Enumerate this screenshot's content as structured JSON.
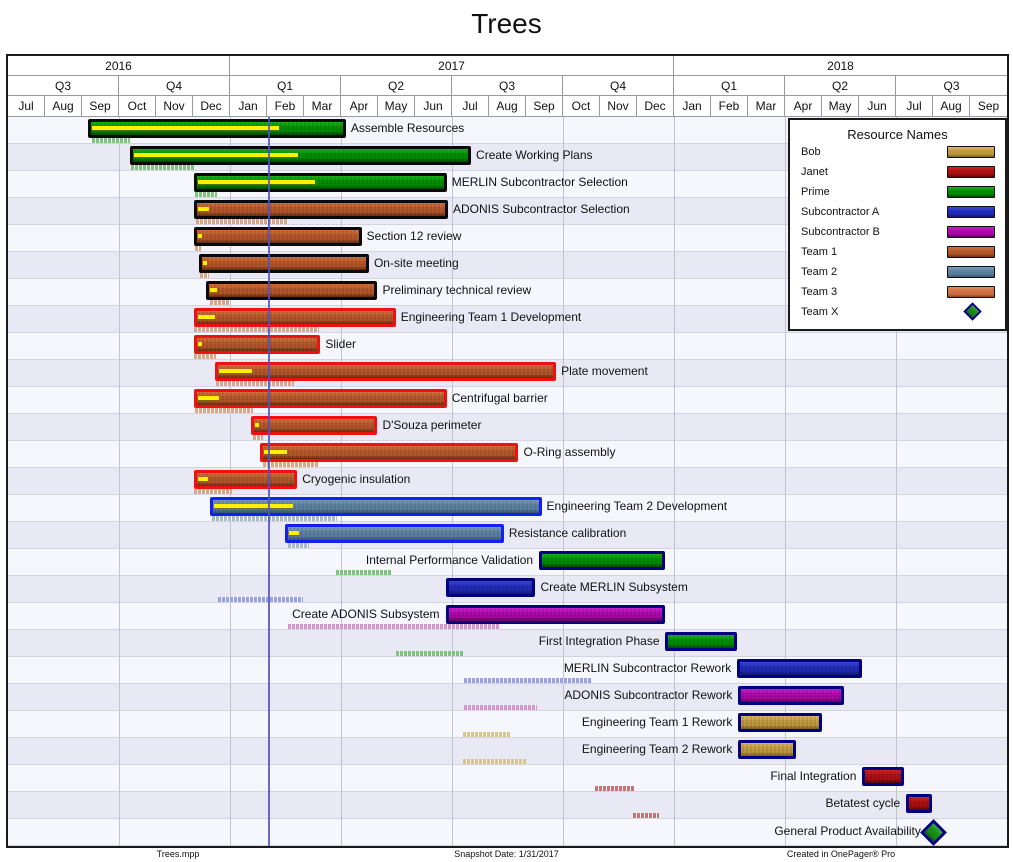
{
  "title": "Trees",
  "snapshot_date": "2017-01-31",
  "footer": {
    "left": "Trees.mpp",
    "center": "Snapshot Date: 1/31/2017",
    "right": "Created in OnePager® Pro"
  },
  "timeline": {
    "start": "2016-07-01",
    "end": "2018-10-01",
    "years": [
      {
        "label": "2016",
        "months": 6
      },
      {
        "label": "2017",
        "months": 12
      },
      {
        "label": "2018",
        "months": 9
      }
    ],
    "quarters": [
      {
        "label": "Q3",
        "months": 3
      },
      {
        "label": "Q4",
        "months": 3
      },
      {
        "label": "Q1",
        "months": 3
      },
      {
        "label": "Q2",
        "months": 3
      },
      {
        "label": "Q3",
        "months": 3
      },
      {
        "label": "Q4",
        "months": 3
      },
      {
        "label": "Q1",
        "months": 3
      },
      {
        "label": "Q2",
        "months": 3
      },
      {
        "label": "Q3",
        "months": 3
      }
    ],
    "months": [
      "Jul",
      "Aug",
      "Sep",
      "Oct",
      "Nov",
      "Dec",
      "Jan",
      "Feb",
      "Mar",
      "Apr",
      "May",
      "Jun",
      "Jul",
      "Aug",
      "Sep",
      "Oct",
      "Nov",
      "Dec",
      "Jan",
      "Feb",
      "Mar",
      "Apr",
      "May",
      "Jun",
      "Jul",
      "Aug",
      "Sep"
    ]
  },
  "legend": {
    "title": "Resource Names",
    "items": [
      {
        "label": "Bob",
        "resource": "bob",
        "shape": "bar"
      },
      {
        "label": "Janet",
        "resource": "janet",
        "shape": "bar"
      },
      {
        "label": "Prime",
        "resource": "prime",
        "shape": "bar"
      },
      {
        "label": "Subcontractor A",
        "resource": "sub_a",
        "shape": "bar"
      },
      {
        "label": "Subcontractor B",
        "resource": "sub_b",
        "shape": "bar"
      },
      {
        "label": "Team 1",
        "resource": "team1",
        "shape": "bar"
      },
      {
        "label": "Team 2",
        "resource": "team2",
        "shape": "bar"
      },
      {
        "label": "Team 3",
        "resource": "team3",
        "shape": "bar"
      },
      {
        "label": "Team X",
        "resource": "teamx",
        "shape": "diamond"
      }
    ]
  },
  "colors": {
    "resources": {
      "bob": {
        "light": "#dcb963",
        "base": "#bd963e",
        "dark": "#7d5f20",
        "baseline": "#dcc globalization"
      },
      "janet": {
        "light": "#d62222",
        "base": "#a80f0f",
        "dark": "#550505",
        "baseline": "#c47474"
      },
      "prime": {
        "light": "#1cb31c",
        "base": "#008a00",
        "dark": "#004a00",
        "baseline": "#7cc57c"
      },
      "sub_a": {
        "light": "#3a4ad8",
        "base": "#2028b4",
        "dark": "#111866",
        "baseline": "#98a4e0"
      },
      "sub_b": {
        "light": "#cc1ecc",
        "base": "#a807a8",
        "dark": "#5e035e",
        "baseline": "#d795ce"
      },
      "team1": {
        "light": "#d3713a",
        "base": "#b0552a",
        "dark": "#662d10",
        "baseline": "#d9a687"
      },
      "team2": {
        "light": "#7d9cb8",
        "base": "#5a7e9e",
        "dark": "#39546e",
        "baseline": "#a8b9c9"
      },
      "team3": {
        "light": "#e08a5a",
        "base": "#cc6f42",
        "dark": "#8a421f",
        "baseline": "#e0b094"
      },
      "teamx": {
        "light": "#2eae2e",
        "base": "#178a17",
        "dark": "#0c560c",
        "baseline": "#7cc57c"
      }
    },
    "baseline_fix": {
      "bob": "#d9c48f"
    },
    "borders": {
      "black": "#0a0a0a",
      "red": "#ee1111",
      "blue": "#1122ee",
      "navy": "#000080"
    },
    "progress": "#ffef00",
    "snapshot_line": "#4d52c8"
  },
  "chart_data": {
    "type": "gantt",
    "title": "Trees",
    "tasks": [
      {
        "name": "Assemble Resources",
        "resource": "prime",
        "border": "black",
        "label_side": "right",
        "start": "2016-09-05",
        "end": "2017-04-05",
        "progress_end": "2017-02-12",
        "baseline": {
          "start": "2016-09-08",
          "end": "2016-10-09"
        }
      },
      {
        "name": "Create Working Plans",
        "resource": "prime",
        "border": "black",
        "label_side": "right",
        "start": "2016-10-09",
        "end": "2017-07-17",
        "progress_end": "2017-02-28",
        "baseline": {
          "start": "2016-10-10",
          "end": "2016-12-02"
        }
      },
      {
        "name": "MERLIN Subcontractor Selection",
        "resource": "prime",
        "border": "black",
        "label_side": "right",
        "start": "2016-12-01",
        "end": "2017-06-27",
        "progress_end": "2017-03-14",
        "baseline": {
          "start": "2016-12-02",
          "end": "2016-12-20"
        }
      },
      {
        "name": "ADONIS Subcontractor Selection",
        "resource": "team1",
        "border": "black",
        "label_side": "right",
        "start": "2016-12-01",
        "end": "2017-06-28",
        "progress_end": "2016-12-17",
        "baseline": {
          "start": "2016-12-03",
          "end": "2017-02-16"
        }
      },
      {
        "name": "Section 12 review",
        "resource": "team1",
        "border": "black",
        "label_side": "right",
        "start": "2016-12-01",
        "end": "2017-04-18",
        "progress_end": "2016-12-07",
        "baseline": {
          "start": "2016-12-02",
          "end": "2016-12-07"
        }
      },
      {
        "name": "On-site meeting",
        "resource": "team1",
        "border": "black",
        "label_side": "right",
        "start": "2016-12-05",
        "end": "2017-04-24",
        "progress_end": "2016-12-12",
        "baseline": {
          "start": "2016-12-06",
          "end": "2016-12-13"
        }
      },
      {
        "name": "Preliminary technical review",
        "resource": "team1",
        "border": "black",
        "label_side": "right",
        "start": "2016-12-11",
        "end": "2017-05-01",
        "progress_end": "2016-12-23",
        "baseline": {
          "start": "2016-12-14",
          "end": "2016-12-30"
        }
      },
      {
        "name": "Engineering Team 1 Development",
        "resource": "team1",
        "border": "red",
        "label_side": "right",
        "start": "2016-12-01",
        "end": "2017-05-16",
        "progress_end": "2016-12-22",
        "baseline": {
          "start": "2016-12-01",
          "end": "2017-03-14"
        }
      },
      {
        "name": "Slider",
        "resource": "team1",
        "border": "red",
        "label_side": "right",
        "start": "2016-12-01",
        "end": "2017-03-15",
        "progress_end": "2016-12-11",
        "baseline": {
          "start": "2016-12-01",
          "end": "2016-12-19"
        }
      },
      {
        "name": "Plate movement",
        "resource": "team1",
        "border": "red",
        "label_side": "right",
        "start": "2016-12-18",
        "end": "2017-09-25",
        "progress_end": "2017-01-21",
        "baseline": {
          "start": "2016-12-19",
          "end": "2017-02-21"
        }
      },
      {
        "name": "Centrifugal barrier",
        "resource": "team1",
        "border": "red",
        "label_side": "right",
        "start": "2016-12-01",
        "end": "2017-06-27",
        "progress_end": "2016-12-25",
        "baseline": {
          "start": "2016-12-02",
          "end": "2017-01-19"
        }
      },
      {
        "name": "D'Souza perimeter",
        "resource": "team1",
        "border": "red",
        "label_side": "right",
        "start": "2017-01-17",
        "end": "2017-05-01",
        "progress_end": "2017-01-23",
        "baseline": {
          "start": "2017-01-19",
          "end": "2017-01-27"
        }
      },
      {
        "name": "O-Ring assembly",
        "resource": "team1",
        "border": "red",
        "label_side": "right",
        "start": "2017-01-24",
        "end": "2017-08-25",
        "progress_end": "2017-02-19",
        "baseline": {
          "start": "2017-01-27",
          "end": "2017-03-14"
        }
      },
      {
        "name": "Cryogenic insulation",
        "resource": "team1",
        "border": "red",
        "label_side": "right",
        "start": "2016-12-01",
        "end": "2017-02-24",
        "progress_end": "2016-12-16",
        "baseline": {
          "start": "2016-12-01",
          "end": "2017-01-01"
        }
      },
      {
        "name": "Engineering Team 2 Development",
        "resource": "team2",
        "border": "blue",
        "label_side": "right",
        "start": "2016-12-14",
        "end": "2017-09-13",
        "progress_end": "2017-02-24",
        "baseline": {
          "start": "2016-12-16",
          "end": "2017-03-29"
        }
      },
      {
        "name": "Resistance calibration",
        "resource": "team2",
        "border": "blue",
        "label_side": "right",
        "start": "2017-02-14",
        "end": "2017-08-13",
        "progress_end": "2017-03-01",
        "baseline": {
          "start": "2017-02-16",
          "end": "2017-03-06"
        }
      },
      {
        "name": "Internal Performance Validation",
        "resource": "prime",
        "border": "navy",
        "label_side": "left",
        "start": "2017-09-11",
        "end": "2017-12-24",
        "progress_end": null,
        "baseline": {
          "start": "2017-03-28",
          "end": "2017-05-12"
        }
      },
      {
        "name": "Create MERLIN Subsystem",
        "resource": "sub_a",
        "border": "navy",
        "label_side": "right",
        "start": "2017-06-26",
        "end": "2017-09-08",
        "progress_end": null,
        "baseline": {
          "start": "2016-12-21",
          "end": "2017-03-01"
        }
      },
      {
        "name": "Create ADONIS Subsystem",
        "resource": "sub_b",
        "border": "navy",
        "label_side": "left",
        "start": "2017-06-26",
        "end": "2017-12-24",
        "progress_end": null,
        "baseline": {
          "start": "2017-02-16",
          "end": "2017-08-09"
        }
      },
      {
        "name": "First Integration Phase",
        "resource": "prime",
        "border": "navy",
        "label_side": "left",
        "start": "2017-12-24",
        "end": "2018-02-21",
        "progress_end": null,
        "baseline": {
          "start": "2017-05-16",
          "end": "2017-07-10"
        }
      },
      {
        "name": "MERLIN Subcontractor Rework",
        "resource": "sub_a",
        "border": "navy",
        "label_side": "left",
        "start": "2018-02-21",
        "end": "2018-06-04",
        "progress_end": null,
        "baseline": {
          "start": "2017-07-11",
          "end": "2017-10-24"
        }
      },
      {
        "name": "ADONIS Subcontractor Rework",
        "resource": "sub_b",
        "border": "navy",
        "label_side": "left",
        "start": "2018-02-22",
        "end": "2018-05-20",
        "progress_end": null,
        "baseline": {
          "start": "2017-07-11",
          "end": "2017-09-09"
        }
      },
      {
        "name": "Engineering Team 1 Rework",
        "resource": "bob",
        "border": "navy",
        "label_side": "left",
        "start": "2018-02-22",
        "end": "2018-05-02",
        "progress_end": null,
        "baseline": {
          "start": "2017-07-10",
          "end": "2017-08-19"
        }
      },
      {
        "name": "Engineering Team 2 Rework",
        "resource": "bob",
        "border": "navy",
        "label_side": "left",
        "start": "2018-02-22",
        "end": "2018-04-10",
        "progress_end": null,
        "baseline": {
          "start": "2017-07-10",
          "end": "2017-08-31"
        }
      },
      {
        "name": "Final Integration",
        "resource": "janet",
        "border": "navy",
        "label_side": "left",
        "start": "2018-06-04",
        "end": "2018-07-08",
        "progress_end": null,
        "baseline": {
          "start": "2017-10-27",
          "end": "2017-11-28"
        }
      },
      {
        "name": "Betatest cycle",
        "resource": "janet",
        "border": "navy",
        "label_side": "left",
        "start": "2018-07-10",
        "end": "2018-07-31",
        "progress_end": null,
        "baseline": {
          "start": "2017-11-27",
          "end": "2017-12-19"
        }
      },
      {
        "name": "General Product Availability",
        "resource": "teamx",
        "border": "navy",
        "label_side": "left",
        "milestone": true,
        "start": "2018-08-01",
        "end": "2018-08-01",
        "progress_end": null,
        "baseline": null
      }
    ]
  }
}
